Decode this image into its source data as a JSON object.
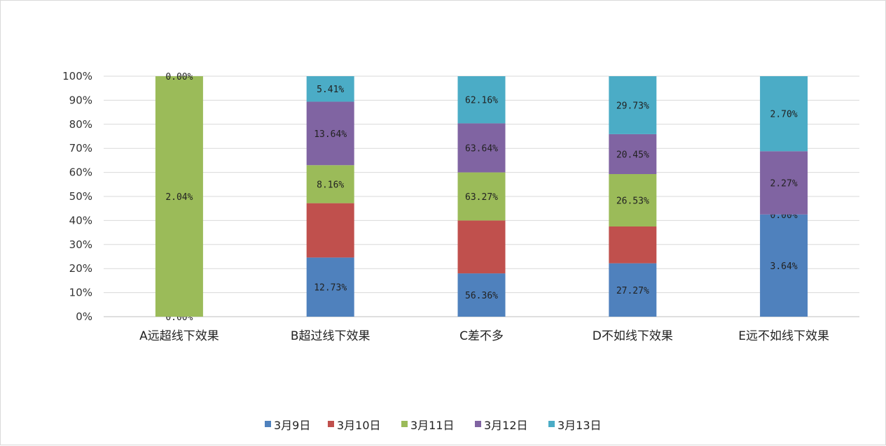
{
  "chart_data": {
    "type": "bar",
    "stacked": true,
    "percent_stacked": true,
    "title": "",
    "xlabel": "",
    "ylabel": "",
    "ylim": [
      0,
      100
    ],
    "y_ticks": [
      "0%",
      "10%",
      "20%",
      "30%",
      "40%",
      "50%",
      "60%",
      "70%",
      "80%",
      "90%",
      "100%"
    ],
    "grid": true,
    "legend_position": "bottom",
    "categories": [
      "A远超线下效果",
      "B超过线下效果",
      "C差不多",
      "D不如线下效果",
      "E远不如线下效果"
    ],
    "series": [
      {
        "name": "3月9日",
        "color": "#4f81bd",
        "values": [
          0,
          24.6,
          18.0,
          22.2,
          42.5
        ],
        "labels": [
          "0.00%",
          "12.73%",
          "56.36%",
          "27.27%",
          "3.64%"
        ]
      },
      {
        "name": "3月10日",
        "color": "#c0504d",
        "values": [
          0,
          22.6,
          22.0,
          15.3,
          0
        ],
        "labels": [
          "",
          "",
          "",
          "",
          "0.00%"
        ]
      },
      {
        "name": "3月11日",
        "color": "#9bbb59",
        "values": [
          100,
          15.8,
          20.0,
          21.8,
          0
        ],
        "labels": [
          "2.04%",
          "8.16%",
          "63.27%",
          "26.53%",
          ""
        ]
      },
      {
        "name": "3月12日",
        "color": "#8064a2",
        "values": [
          0,
          26.4,
          20.4,
          16.6,
          26.3
        ],
        "labels": [
          "",
          "13.64%",
          "63.64%",
          "20.45%",
          "2.27%"
        ]
      },
      {
        "name": "3月13日",
        "color": "#4bacc6",
        "values": [
          0,
          10.6,
          19.6,
          24.1,
          31.2
        ],
        "labels": [
          "0.00%",
          "5.41%",
          "62.16%",
          "29.73%",
          "2.70%"
        ]
      }
    ]
  }
}
